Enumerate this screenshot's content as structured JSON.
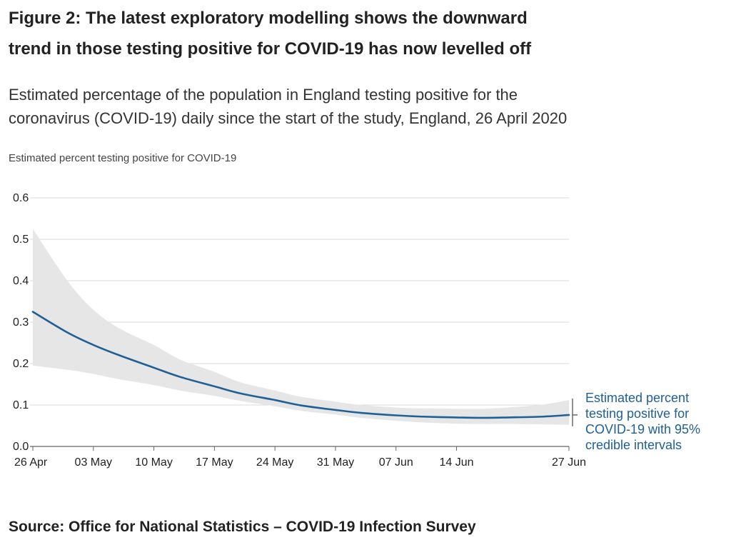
{
  "title_lines": [
    "Figure 2: The latest exploratory modelling shows the downward",
    "trend in those testing positive for COVID-19 has now levelled off"
  ],
  "subtitle_lines": [
    "Estimated percentage of the population in England testing positive for the",
    "coronavirus (COVID-19) daily since the start of the study, England, 26 April 2020"
  ],
  "source": "Source: Office for National Statistics – COVID-19 Infection Survey",
  "colors": {
    "line": "#206095",
    "band": "#e6e6e6",
    "grid": "#d9d9d9",
    "axis": "#666666"
  },
  "chart_data": {
    "type": "line",
    "ylabel": "Estimated percent testing positive for COVID-19",
    "xlabel": "",
    "ylim": [
      0,
      0.6
    ],
    "yticks": [
      "0.0",
      "0.1",
      "0.2",
      "0.3",
      "0.4",
      "0.5",
      "0.6"
    ],
    "xticks": [
      {
        "date": "2020-04-26",
        "label": "26 Apr"
      },
      {
        "date": "2020-05-03",
        "label": "03 May"
      },
      {
        "date": "2020-05-10",
        "label": "10 May"
      },
      {
        "date": "2020-05-17",
        "label": "17 May"
      },
      {
        "date": "2020-05-24",
        "label": "24 May"
      },
      {
        "date": "2020-05-31",
        "label": "31 May"
      },
      {
        "date": "2020-06-07",
        "label": "07 Jun"
      },
      {
        "date": "2020-06-14",
        "label": "14 Jun"
      },
      {
        "date": "2020-06-27",
        "label": "27 Jun"
      }
    ],
    "grid": true,
    "series": [
      {
        "name": "Estimated percent testing positive for COVID-19 with 95% credible intervals",
        "x": [
          "2020-04-26",
          "2020-04-30",
          "2020-05-03",
          "2020-05-06",
          "2020-05-10",
          "2020-05-13",
          "2020-05-17",
          "2020-05-20",
          "2020-05-24",
          "2020-05-27",
          "2020-05-31",
          "2020-06-03",
          "2020-06-07",
          "2020-06-10",
          "2020-06-14",
          "2020-06-17",
          "2020-06-20",
          "2020-06-24",
          "2020-06-27"
        ],
        "y": [
          0.325,
          0.275,
          0.245,
          0.22,
          0.19,
          0.168,
          0.145,
          0.128,
          0.112,
          0.099,
          0.088,
          0.081,
          0.075,
          0.072,
          0.07,
          0.069,
          0.07,
          0.072,
          0.076
        ],
        "lower": [
          0.195,
          0.185,
          0.175,
          0.162,
          0.148,
          0.135,
          0.122,
          0.11,
          0.097,
          0.086,
          0.077,
          0.069,
          0.062,
          0.058,
          0.055,
          0.054,
          0.054,
          0.053,
          0.052
        ],
        "upper": [
          0.525,
          0.4,
          0.33,
          0.285,
          0.245,
          0.21,
          0.18,
          0.155,
          0.135,
          0.12,
          0.108,
          0.1,
          0.094,
          0.092,
          0.091,
          0.091,
          0.094,
          0.101,
          0.112
        ]
      }
    ],
    "legend_label_lines": [
      "Estimated percent",
      "testing positive for",
      "COVID-19 with 95%",
      "credible intervals"
    ]
  }
}
